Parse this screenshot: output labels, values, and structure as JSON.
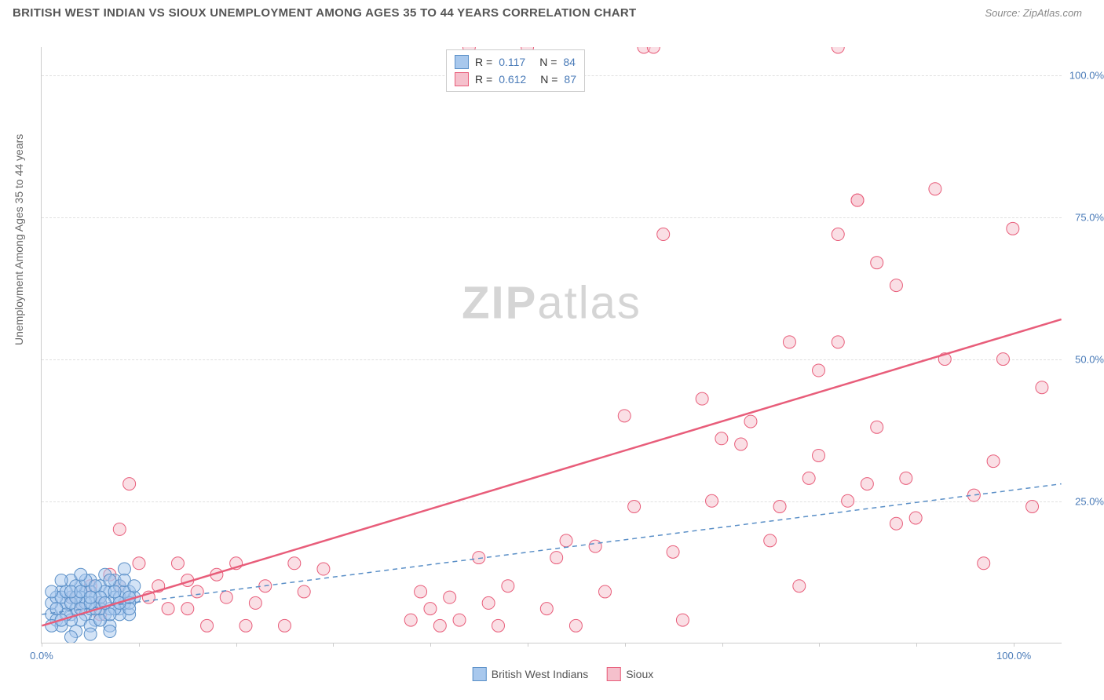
{
  "header": {
    "title": "BRITISH WEST INDIAN VS SIOUX UNEMPLOYMENT AMONG AGES 35 TO 44 YEARS CORRELATION CHART",
    "source": "Source: ZipAtlas.com"
  },
  "chart": {
    "type": "scatter",
    "y_axis_title": "Unemployment Among Ages 35 to 44 years",
    "xlim": [
      0,
      105
    ],
    "ylim": [
      0,
      105
    ],
    "x_ticks": [
      0,
      10,
      20,
      30,
      40,
      50,
      60,
      70,
      80,
      90,
      100
    ],
    "y_ticks": [
      25,
      50,
      75,
      100
    ],
    "x_tick_labels": {
      "0": "0.0%",
      "100": "100.0%"
    },
    "y_tick_labels": {
      "25": "25.0%",
      "50": "50.0%",
      "75": "75.0%",
      "100": "100.0%"
    },
    "grid_color": "#e0e0e0",
    "axis_color": "#cccccc",
    "tick_label_color": "#4a7bb8",
    "background_color": "#ffffff",
    "marker_radius": 8,
    "marker_opacity": 0.5,
    "series": [
      {
        "name": "British West Indians",
        "color_fill": "#a8c8ed",
        "color_stroke": "#5a8fc7",
        "R": "0.117",
        "N": "84",
        "trend": {
          "x1": 0,
          "y1": 5,
          "x2": 105,
          "y2": 28,
          "dash": "6,5",
          "width": 1.5,
          "color": "#5a8fc7"
        },
        "points": [
          [
            1,
            5
          ],
          [
            1.5,
            4
          ],
          [
            2,
            6
          ],
          [
            2,
            3
          ],
          [
            2.5,
            7
          ],
          [
            3,
            5
          ],
          [
            3,
            8
          ],
          [
            3.5,
            6
          ],
          [
            3.5,
            2
          ],
          [
            4,
            7
          ],
          [
            4,
            10
          ],
          [
            4.5,
            5
          ],
          [
            4.5,
            9
          ],
          [
            5,
            6
          ],
          [
            5,
            11
          ],
          [
            5.5,
            8
          ],
          [
            5.5,
            4
          ],
          [
            6,
            7
          ],
          [
            6,
            10
          ],
          [
            6.5,
            12
          ],
          [
            6.5,
            5
          ],
          [
            7,
            9
          ],
          [
            7,
            3
          ],
          [
            7.5,
            8
          ],
          [
            7.5,
            11
          ],
          [
            8,
            6
          ],
          [
            8,
            10
          ],
          [
            8.5,
            7
          ],
          [
            8.5,
            13
          ],
          [
            9,
            9
          ],
          [
            9,
            5
          ],
          [
            9.5,
            8
          ],
          [
            2,
            9
          ],
          [
            3,
            11
          ],
          [
            4,
            4
          ],
          [
            5,
            3
          ],
          [
            6,
            4
          ],
          [
            7,
            6
          ],
          [
            8,
            5
          ],
          [
            9,
            7
          ],
          [
            1,
            7
          ],
          [
            2,
            11
          ],
          [
            3,
            4
          ],
          [
            4,
            8
          ],
          [
            5,
            9
          ],
          [
            6,
            6
          ],
          [
            7,
            11
          ],
          [
            8,
            8
          ],
          [
            9,
            6
          ],
          [
            1.5,
            8
          ],
          [
            2.5,
            5
          ],
          [
            3.5,
            10
          ],
          [
            4.5,
            7
          ],
          [
            5.5,
            6
          ],
          [
            6.5,
            9
          ],
          [
            7.5,
            6
          ],
          [
            8.5,
            9
          ],
          [
            1,
            3
          ],
          [
            2,
            8
          ],
          [
            3,
            7
          ],
          [
            4,
            6
          ],
          [
            5,
            7
          ],
          [
            6,
            8
          ],
          [
            7,
            5
          ],
          [
            8,
            7
          ],
          [
            9,
            8
          ],
          [
            1.5,
            6
          ],
          [
            2.5,
            9
          ],
          [
            3.5,
            8
          ],
          [
            4.5,
            11
          ],
          [
            5.5,
            10
          ],
          [
            6.5,
            7
          ],
          [
            7.5,
            9
          ],
          [
            8.5,
            11
          ],
          [
            9.5,
            10
          ],
          [
            1,
            9
          ],
          [
            2,
            4
          ],
          [
            3,
            9
          ],
          [
            4,
            9
          ],
          [
            5,
            8
          ],
          [
            3,
            1
          ],
          [
            5,
            1.5
          ],
          [
            7,
            2
          ],
          [
            4,
            12
          ]
        ]
      },
      {
        "name": "Sioux",
        "color_fill": "#f5c0cc",
        "color_stroke": "#e85d7a",
        "R": "0.612",
        "N": "87",
        "trend": {
          "x1": 0,
          "y1": 3,
          "x2": 105,
          "y2": 57,
          "dash": "none",
          "width": 2.5,
          "color": "#e85d7a"
        },
        "points": [
          [
            3,
            8
          ],
          [
            4,
            6
          ],
          [
            5,
            10
          ],
          [
            6,
            7
          ],
          [
            7,
            12
          ],
          [
            8,
            20
          ],
          [
            9,
            28
          ],
          [
            10,
            14
          ],
          [
            11,
            8
          ],
          [
            12,
            10
          ],
          [
            13,
            6
          ],
          [
            14,
            14
          ],
          [
            15,
            11
          ],
          [
            16,
            9
          ],
          [
            17,
            3
          ],
          [
            18,
            12
          ],
          [
            19,
            8
          ],
          [
            20,
            14
          ],
          [
            21,
            3
          ],
          [
            22,
            7
          ],
          [
            23,
            10
          ],
          [
            25,
            3
          ],
          [
            26,
            14
          ],
          [
            27,
            9
          ],
          [
            29,
            13
          ],
          [
            38,
            4
          ],
          [
            39,
            9
          ],
          [
            40,
            6
          ],
          [
            41,
            3
          ],
          [
            42,
            8
          ],
          [
            43,
            4
          ],
          [
            44,
            105
          ],
          [
            45,
            15
          ],
          [
            46,
            7
          ],
          [
            47,
            3
          ],
          [
            48,
            10
          ],
          [
            50,
            105
          ],
          [
            52,
            6
          ],
          [
            53,
            15
          ],
          [
            54,
            18
          ],
          [
            55,
            3
          ],
          [
            57,
            17
          ],
          [
            58,
            9
          ],
          [
            60,
            40
          ],
          [
            61,
            24
          ],
          [
            62,
            105
          ],
          [
            63,
            105
          ],
          [
            64,
            72
          ],
          [
            65,
            16
          ],
          [
            66,
            4
          ],
          [
            68,
            43
          ],
          [
            69,
            25
          ],
          [
            70,
            36
          ],
          [
            72,
            35
          ],
          [
            73,
            39
          ],
          [
            75,
            18
          ],
          [
            76,
            24
          ],
          [
            77,
            53
          ],
          [
            78,
            10
          ],
          [
            79,
            29
          ],
          [
            80,
            48
          ],
          [
            80,
            33
          ],
          [
            82,
            53
          ],
          [
            82,
            72
          ],
          [
            83,
            25
          ],
          [
            84,
            78
          ],
          [
            84,
            78
          ],
          [
            85,
            28
          ],
          [
            86,
            67
          ],
          [
            86,
            38
          ],
          [
            88,
            63
          ],
          [
            88,
            21
          ],
          [
            89,
            29
          ],
          [
            90,
            22
          ],
          [
            92,
            80
          ],
          [
            93,
            50
          ],
          [
            96,
            26
          ],
          [
            97,
            14
          ],
          [
            98,
            32
          ],
          [
            99,
            50
          ],
          [
            100,
            73
          ],
          [
            102,
            24
          ],
          [
            103,
            45
          ],
          [
            82,
            105
          ],
          [
            8,
            10
          ],
          [
            6,
            5
          ],
          [
            15,
            6
          ]
        ]
      }
    ],
    "legend_bottom": [
      {
        "label": "British West Indians",
        "fill": "#a8c8ed",
        "stroke": "#5a8fc7"
      },
      {
        "label": "Sioux",
        "fill": "#f5c0cc",
        "stroke": "#e85d7a"
      }
    ],
    "watermark": {
      "zip": "ZIP",
      "atlas": "atlas"
    }
  }
}
